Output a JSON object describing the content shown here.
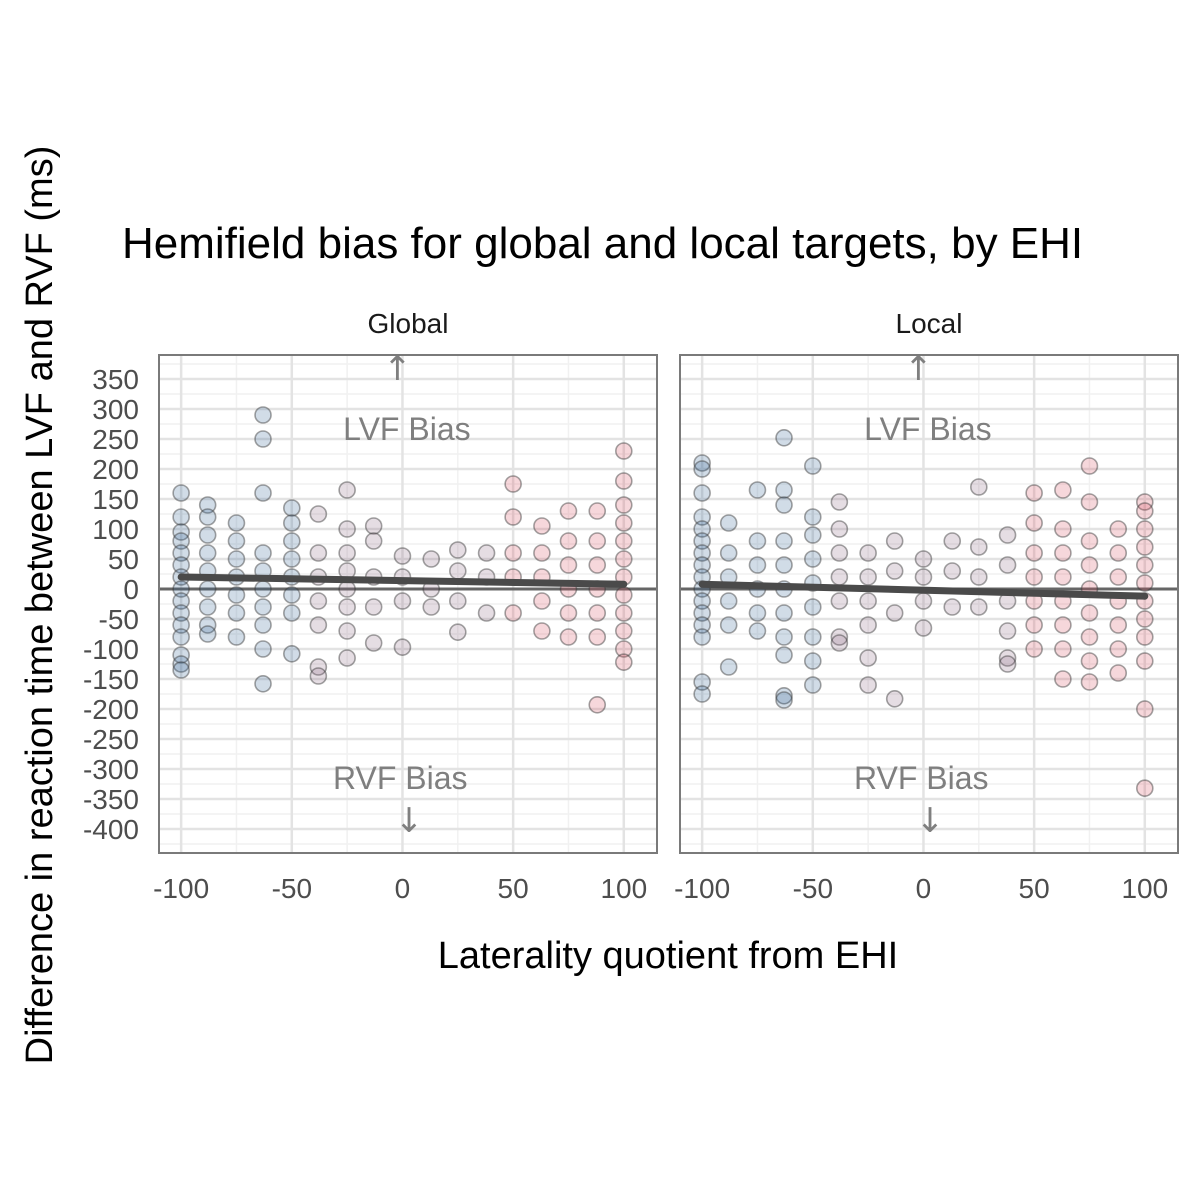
{
  "chart_data": {
    "type": "scatter",
    "title": "Hemifield bias for global and local targets, by EHI",
    "xlabel": "Laterality quotient from EHI",
    "ylabel": "Difference in reaction time between LVF and RVF (ms)",
    "xlim": [
      -110,
      115
    ],
    "ylim": [
      -440,
      390
    ],
    "x_ticks": [
      "-100",
      "-50",
      "0",
      "50",
      "100"
    ],
    "y_ticks": [
      "350",
      "300",
      "250",
      "200",
      "150",
      "100",
      "50",
      "0",
      "-50",
      "-100",
      "-150",
      "-200",
      "-250",
      "-300",
      "-350",
      "-400"
    ],
    "grid": true,
    "reference_line_y": 0,
    "colors": {
      "left": "#2c5f93",
      "mid": "#8a6480",
      "right": "#d6495a",
      "fit": "#4a4a4a",
      "ref": "#666666"
    },
    "annotations": {
      "upper": "LVF Bias",
      "lower": "RVF Bias"
    },
    "facets": [
      {
        "label": "Global",
        "trend": {
          "x": [
            -100,
            100
          ],
          "y": [
            20,
            8
          ]
        },
        "points": [
          [
            -63,
            290
          ],
          [
            -63,
            250
          ],
          [
            -25,
            165
          ],
          [
            -100,
            160
          ],
          [
            -88,
            140
          ],
          [
            -63,
            160
          ],
          [
            -50,
            135
          ],
          [
            -100,
            120
          ],
          [
            -88,
            120
          ],
          [
            -75,
            110
          ],
          [
            -38,
            125
          ],
          [
            -50,
            110
          ],
          [
            -13,
            105
          ],
          [
            -25,
            100
          ],
          [
            -100,
            95
          ],
          [
            -100,
            80
          ],
          [
            -100,
            60
          ],
          [
            -100,
            40
          ],
          [
            -100,
            20
          ],
          [
            -100,
            0
          ],
          [
            -100,
            -20
          ],
          [
            -100,
            -40
          ],
          [
            -100,
            -60
          ],
          [
            -100,
            -80
          ],
          [
            -100,
            -110
          ],
          [
            -100,
            -125
          ],
          [
            -100,
            -135
          ],
          [
            -88,
            90
          ],
          [
            -88,
            60
          ],
          [
            -88,
            30
          ],
          [
            -88,
            0
          ],
          [
            -88,
            -30
          ],
          [
            -88,
            -60
          ],
          [
            -88,
            -75
          ],
          [
            -75,
            80
          ],
          [
            -75,
            50
          ],
          [
            -75,
            20
          ],
          [
            -75,
            -10
          ],
          [
            -75,
            -40
          ],
          [
            -75,
            -80
          ],
          [
            -63,
            60
          ],
          [
            -63,
            30
          ],
          [
            -63,
            0
          ],
          [
            -63,
            -30
          ],
          [
            -63,
            -60
          ],
          [
            -63,
            -100
          ],
          [
            -63,
            -158
          ],
          [
            -50,
            80
          ],
          [
            -50,
            50
          ],
          [
            -50,
            20
          ],
          [
            -50,
            -10
          ],
          [
            -50,
            -40
          ],
          [
            -50,
            -108
          ],
          [
            -38,
            60
          ],
          [
            -38,
            20
          ],
          [
            -38,
            -20
          ],
          [
            -38,
            -60
          ],
          [
            -38,
            -130
          ],
          [
            -38,
            -145
          ],
          [
            -25,
            60
          ],
          [
            -25,
            30
          ],
          [
            -25,
            0
          ],
          [
            -25,
            -30
          ],
          [
            -25,
            -70
          ],
          [
            -25,
            -115
          ],
          [
            -13,
            80
          ],
          [
            -13,
            20
          ],
          [
            -13,
            -30
          ],
          [
            -13,
            -90
          ],
          [
            0,
            55
          ],
          [
            0,
            20
          ],
          [
            0,
            -20
          ],
          [
            0,
            -97
          ],
          [
            13,
            50
          ],
          [
            13,
            0
          ],
          [
            13,
            -30
          ],
          [
            25,
            65
          ],
          [
            25,
            30
          ],
          [
            25,
            -20
          ],
          [
            25,
            -72
          ],
          [
            38,
            60
          ],
          [
            38,
            20
          ],
          [
            38,
            -40
          ],
          [
            50,
            175
          ],
          [
            50,
            120
          ],
          [
            50,
            60
          ],
          [
            50,
            20
          ],
          [
            50,
            -40
          ],
          [
            63,
            105
          ],
          [
            63,
            60
          ],
          [
            63,
            20
          ],
          [
            63,
            -20
          ],
          [
            63,
            -70
          ],
          [
            75,
            130
          ],
          [
            75,
            80
          ],
          [
            75,
            40
          ],
          [
            75,
            0
          ],
          [
            75,
            -40
          ],
          [
            75,
            -80
          ],
          [
            88,
            130
          ],
          [
            88,
            80
          ],
          [
            88,
            40
          ],
          [
            88,
            0
          ],
          [
            88,
            -40
          ],
          [
            88,
            -80
          ],
          [
            88,
            -193
          ],
          [
            100,
            230
          ],
          [
            100,
            180
          ],
          [
            100,
            140
          ],
          [
            100,
            110
          ],
          [
            100,
            80
          ],
          [
            100,
            50
          ],
          [
            100,
            20
          ],
          [
            100,
            -10
          ],
          [
            100,
            -40
          ],
          [
            100,
            -70
          ],
          [
            100,
            -100
          ],
          [
            100,
            -122
          ]
        ]
      },
      {
        "label": "Local",
        "trend": {
          "x": [
            -100,
            100
          ],
          "y": [
            8,
            -12
          ]
        },
        "points": [
          [
            -63,
            252
          ],
          [
            -100,
            210
          ],
          [
            -100,
            200
          ],
          [
            -50,
            205
          ],
          [
            -100,
            160
          ],
          [
            -63,
            165
          ],
          [
            -75,
            165
          ],
          [
            -88,
            110
          ],
          [
            -63,
            140
          ],
          [
            -50,
            120
          ],
          [
            -100,
            120
          ],
          [
            -100,
            100
          ],
          [
            -100,
            80
          ],
          [
            -100,
            60
          ],
          [
            -100,
            40
          ],
          [
            -100,
            20
          ],
          [
            -100,
            0
          ],
          [
            -100,
            -20
          ],
          [
            -100,
            -40
          ],
          [
            -100,
            -60
          ],
          [
            -100,
            -80
          ],
          [
            -100,
            -155
          ],
          [
            -100,
            -175
          ],
          [
            -88,
            60
          ],
          [
            -88,
            20
          ],
          [
            -88,
            -20
          ],
          [
            -88,
            -60
          ],
          [
            -88,
            -130
          ],
          [
            -75,
            80
          ],
          [
            -75,
            40
          ],
          [
            -75,
            0
          ],
          [
            -75,
            -40
          ],
          [
            -75,
            -70
          ],
          [
            -63,
            80
          ],
          [
            -63,
            40
          ],
          [
            -63,
            0
          ],
          [
            -63,
            -40
          ],
          [
            -63,
            -80
          ],
          [
            -63,
            -110
          ],
          [
            -63,
            -178
          ],
          [
            -63,
            -185
          ],
          [
            -50,
            90
          ],
          [
            -50,
            50
          ],
          [
            -50,
            10
          ],
          [
            -50,
            -30
          ],
          [
            -50,
            -80
          ],
          [
            -50,
            -120
          ],
          [
            -50,
            -160
          ],
          [
            -38,
            145
          ],
          [
            -38,
            100
          ],
          [
            -38,
            60
          ],
          [
            -38,
            20
          ],
          [
            -38,
            -20
          ],
          [
            -38,
            -80
          ],
          [
            -38,
            -90
          ],
          [
            -25,
            60
          ],
          [
            -25,
            20
          ],
          [
            -25,
            -20
          ],
          [
            -25,
            -60
          ],
          [
            -25,
            -115
          ],
          [
            -25,
            -160
          ],
          [
            -13,
            80
          ],
          [
            -13,
            30
          ],
          [
            -13,
            -40
          ],
          [
            -13,
            -183
          ],
          [
            0,
            50
          ],
          [
            0,
            20
          ],
          [
            0,
            -20
          ],
          [
            0,
            -65
          ],
          [
            13,
            80
          ],
          [
            13,
            30
          ],
          [
            13,
            -30
          ],
          [
            25,
            170
          ],
          [
            25,
            70
          ],
          [
            25,
            20
          ],
          [
            25,
            -30
          ],
          [
            38,
            90
          ],
          [
            38,
            40
          ],
          [
            38,
            -20
          ],
          [
            38,
            -70
          ],
          [
            38,
            -115
          ],
          [
            38,
            -125
          ],
          [
            50,
            160
          ],
          [
            50,
            110
          ],
          [
            50,
            60
          ],
          [
            50,
            20
          ],
          [
            50,
            -20
          ],
          [
            50,
            -60
          ],
          [
            50,
            -100
          ],
          [
            63,
            165
          ],
          [
            63,
            100
          ],
          [
            63,
            60
          ],
          [
            63,
            20
          ],
          [
            63,
            -20
          ],
          [
            63,
            -60
          ],
          [
            63,
            -100
          ],
          [
            63,
            -150
          ],
          [
            75,
            205
          ],
          [
            75,
            145
          ],
          [
            75,
            80
          ],
          [
            75,
            40
          ],
          [
            75,
            0
          ],
          [
            75,
            -40
          ],
          [
            75,
            -80
          ],
          [
            75,
            -120
          ],
          [
            75,
            -155
          ],
          [
            88,
            100
          ],
          [
            88,
            60
          ],
          [
            88,
            20
          ],
          [
            88,
            -20
          ],
          [
            88,
            -60
          ],
          [
            88,
            -100
          ],
          [
            88,
            -140
          ],
          [
            100,
            145
          ],
          [
            100,
            130
          ],
          [
            100,
            100
          ],
          [
            100,
            70
          ],
          [
            100,
            40
          ],
          [
            100,
            10
          ],
          [
            100,
            -20
          ],
          [
            100,
            -50
          ],
          [
            100,
            -80
          ],
          [
            100,
            -120
          ],
          [
            100,
            -200
          ],
          [
            100,
            -332
          ]
        ]
      }
    ]
  }
}
